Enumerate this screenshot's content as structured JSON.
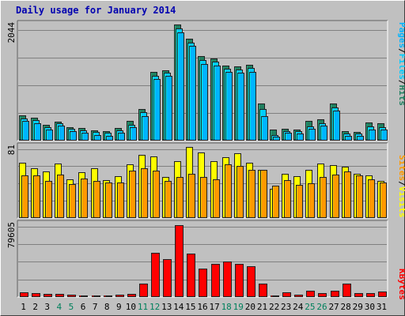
{
  "title": "Daily usage for January 2014",
  "colors": {
    "pages": "#00b4ff",
    "files": "#00ccff",
    "hits": "#208060",
    "visits": "#ffff00",
    "sites": "#ff9900",
    "kbytes": "#ff0000",
    "panel_bg": "#c0c0c0",
    "weekday": "#000000",
    "weekend": "#00805c",
    "title": "#0000b0"
  },
  "legend": {
    "top": [
      "Pages",
      "Files",
      "Hits"
    ],
    "middle": [
      "Sites",
      "Visits"
    ],
    "bottom": [
      "KBytes"
    ],
    "sep": "/"
  },
  "chart_data": [
    {
      "type": "bar",
      "name": "hits-files-pages",
      "ymax_label": "2044",
      "ylim": [
        0,
        2044
      ],
      "categories": [
        "1",
        "2",
        "3",
        "4",
        "5",
        "6",
        "7",
        "8",
        "9",
        "10",
        "11",
        "12",
        "13",
        "14",
        "15",
        "16",
        "17",
        "18",
        "19",
        "20",
        "21",
        "22",
        "23",
        "24",
        "25",
        "26",
        "27",
        "28",
        "29",
        "30",
        "31"
      ],
      "weekend_days": [
        "4",
        "5",
        "11",
        "12",
        "18",
        "19",
        "25",
        "26"
      ],
      "series": [
        {
          "name": "Hits",
          "values": [
            430,
            390,
            260,
            320,
            220,
            210,
            170,
            150,
            210,
            330,
            550,
            1210,
            1230,
            2040,
            1790,
            1480,
            1440,
            1320,
            1300,
            1330,
            640,
            180,
            200,
            180,
            340,
            360,
            640,
            160,
            140,
            310,
            290
          ]
        },
        {
          "name": "Files",
          "values": [
            380,
            350,
            230,
            300,
            190,
            170,
            140,
            120,
            170,
            270,
            490,
            1140,
            1190,
            1970,
            1720,
            1420,
            1380,
            1260,
            1240,
            1280,
            540,
            90,
            160,
            150,
            240,
            300,
            570,
            110,
            110,
            240,
            220
          ]
        },
        {
          "name": "Pages",
          "values": [
            330,
            300,
            180,
            250,
            150,
            120,
            90,
            70,
            120,
            220,
            420,
            1080,
            1130,
            1910,
            1660,
            1340,
            1320,
            1200,
            1190,
            1210,
            420,
            50,
            120,
            110,
            190,
            250,
            520,
            70,
            70,
            180,
            180
          ]
        }
      ]
    },
    {
      "type": "bar",
      "name": "visits-sites",
      "ymax_label": "81",
      "ylim": [
        0,
        81
      ],
      "categories": [
        "1",
        "2",
        "3",
        "4",
        "5",
        "6",
        "7",
        "8",
        "9",
        "10",
        "11",
        "12",
        "13",
        "14",
        "15",
        "16",
        "17",
        "18",
        "19",
        "20",
        "21",
        "22",
        "23",
        "24",
        "25",
        "26",
        "27",
        "28",
        "29",
        "30",
        "31"
      ],
      "series": [
        {
          "name": "Visits",
          "values": [
            63,
            56,
            53,
            62,
            44,
            52,
            56,
            43,
            47,
            61,
            72,
            70,
            46,
            65,
            81,
            75,
            65,
            69,
            74,
            63,
            55,
            33,
            50,
            47,
            55,
            62,
            60,
            58,
            50,
            48,
            42
          ]
        },
        {
          "name": "Sites",
          "values": [
            48,
            48,
            42,
            49,
            38,
            45,
            42,
            40,
            40,
            54,
            56,
            54,
            42,
            46,
            50,
            46,
            44,
            61,
            59,
            55,
            55,
            36,
            43,
            37,
            39,
            46,
            49,
            53,
            48,
            44,
            40
          ]
        }
      ]
    },
    {
      "type": "bar",
      "name": "kbytes",
      "ymax_label": "79605",
      "ylim": [
        0,
        79605
      ],
      "categories": [
        "1",
        "2",
        "3",
        "4",
        "5",
        "6",
        "7",
        "8",
        "9",
        "10",
        "11",
        "12",
        "13",
        "14",
        "15",
        "16",
        "17",
        "18",
        "19",
        "20",
        "21",
        "22",
        "23",
        "24",
        "25",
        "26",
        "27",
        "28",
        "29",
        "30",
        "31"
      ],
      "series": [
        {
          "name": "KBytes",
          "values": [
            4000,
            3300,
            2500,
            2300,
            1700,
            800,
            700,
            800,
            2000,
            2400,
            14100,
            48000,
            40700,
            78500,
            46900,
            30300,
            36000,
            38400,
            35700,
            33500,
            14400,
            700,
            4400,
            2100,
            6000,
            3700,
            5800,
            14000,
            3800,
            3600,
            5400
          ]
        }
      ]
    }
  ]
}
